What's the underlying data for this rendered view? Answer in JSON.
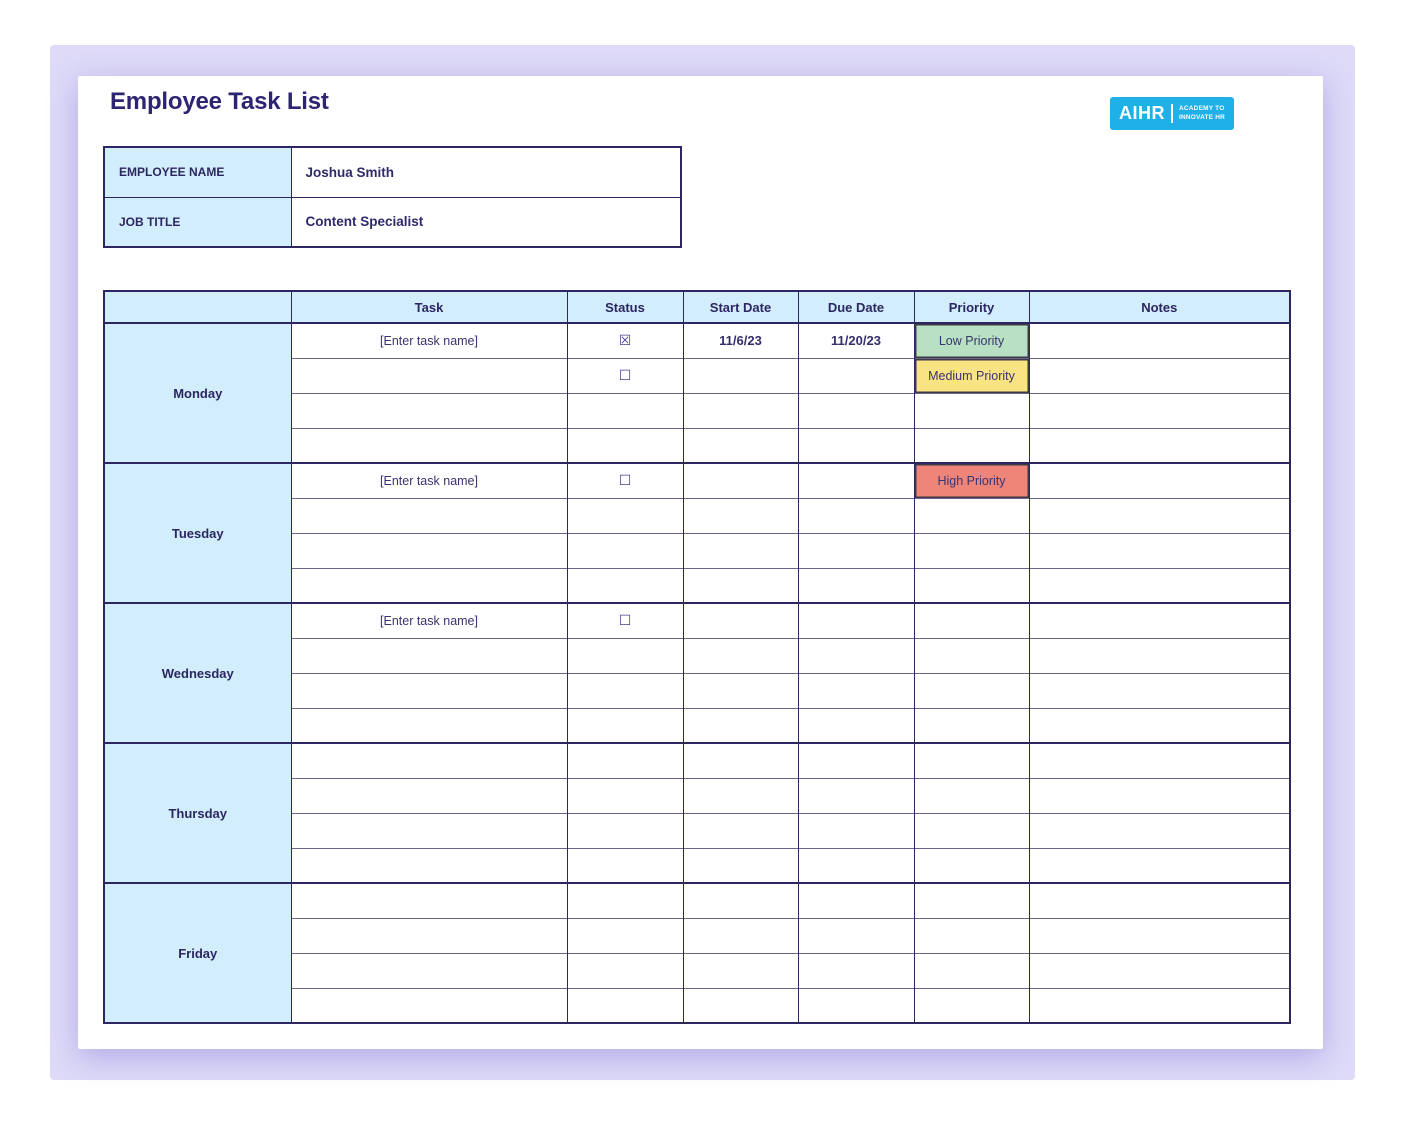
{
  "page": {
    "title": "Employee Task List"
  },
  "logo": {
    "text": "AIHR",
    "tagline_line1": "ACADEMY TO",
    "tagline_line2": "INNOVATE HR",
    "background_color": "#1fb0e8"
  },
  "employee_info": {
    "rows": [
      {
        "label": "EMPLOYEE NAME",
        "value": "Joshua Smith"
      },
      {
        "label": "JOB TITLE",
        "value": "Content Specialist"
      }
    ]
  },
  "symbols": {
    "checked": "☒",
    "unchecked": "☐"
  },
  "colors": {
    "accent_navy": "#2c2661",
    "header_blue": "#d2eefc",
    "priority_low_green": "#b7e1c2",
    "priority_medium_yellow": "#f9e383",
    "priority_high_red": "#ee8578",
    "page_background_lavender": "#dedaf8"
  },
  "task_table": {
    "headers": [
      {
        "key": "day",
        "label": ""
      },
      {
        "key": "task",
        "label": "Task"
      },
      {
        "key": "status",
        "label": "Status"
      },
      {
        "key": "start_date",
        "label": "Start Date"
      },
      {
        "key": "due_date",
        "label": "Due Date"
      },
      {
        "key": "priority",
        "label": "Priority"
      },
      {
        "key": "notes",
        "label": "Notes"
      }
    ],
    "days": [
      {
        "name": "Monday",
        "rows": [
          {
            "task": "[Enter task name]",
            "status": "checked",
            "start_date": "11/6/23",
            "due_date": "11/20/23",
            "priority": "Low Priority",
            "priority_level": "low",
            "notes": ""
          },
          {
            "task": "",
            "status": "unchecked",
            "start_date": "",
            "due_date": "",
            "priority": "Medium Priority",
            "priority_level": "medium",
            "notes": ""
          },
          {
            "task": "",
            "status": "",
            "start_date": "",
            "due_date": "",
            "priority": "",
            "priority_level": "",
            "notes": ""
          },
          {
            "task": "",
            "status": "",
            "start_date": "",
            "due_date": "",
            "priority": "",
            "priority_level": "",
            "notes": ""
          }
        ]
      },
      {
        "name": "Tuesday",
        "rows": [
          {
            "task": "[Enter task name]",
            "status": "unchecked",
            "start_date": "",
            "due_date": "",
            "priority": "High Priority",
            "priority_level": "high",
            "notes": ""
          },
          {
            "task": "",
            "status": "",
            "start_date": "",
            "due_date": "",
            "priority": "",
            "priority_level": "",
            "notes": ""
          },
          {
            "task": "",
            "status": "",
            "start_date": "",
            "due_date": "",
            "priority": "",
            "priority_level": "",
            "notes": ""
          },
          {
            "task": "",
            "status": "",
            "start_date": "",
            "due_date": "",
            "priority": "",
            "priority_level": "",
            "notes": ""
          }
        ]
      },
      {
        "name": "Wednesday",
        "rows": [
          {
            "task": "[Enter task name]",
            "status": "unchecked",
            "start_date": "",
            "due_date": "",
            "priority": "",
            "priority_level": "",
            "notes": ""
          },
          {
            "task": "",
            "status": "",
            "start_date": "",
            "due_date": "",
            "priority": "",
            "priority_level": "",
            "notes": ""
          },
          {
            "task": "",
            "status": "",
            "start_date": "",
            "due_date": "",
            "priority": "",
            "priority_level": "",
            "notes": ""
          },
          {
            "task": "",
            "status": "",
            "start_date": "",
            "due_date": "",
            "priority": "",
            "priority_level": "",
            "notes": ""
          }
        ]
      },
      {
        "name": "Thursday",
        "rows": [
          {
            "task": "",
            "status": "",
            "start_date": "",
            "due_date": "",
            "priority": "",
            "priority_level": "",
            "notes": ""
          },
          {
            "task": "",
            "status": "",
            "start_date": "",
            "due_date": "",
            "priority": "",
            "priority_level": "",
            "notes": ""
          },
          {
            "task": "",
            "status": "",
            "start_date": "",
            "due_date": "",
            "priority": "",
            "priority_level": "",
            "notes": ""
          },
          {
            "task": "",
            "status": "",
            "start_date": "",
            "due_date": "",
            "priority": "",
            "priority_level": "",
            "notes": ""
          }
        ]
      },
      {
        "name": "Friday",
        "rows": [
          {
            "task": "",
            "status": "",
            "start_date": "",
            "due_date": "",
            "priority": "",
            "priority_level": "",
            "notes": ""
          },
          {
            "task": "",
            "status": "",
            "start_date": "",
            "due_date": "",
            "priority": "",
            "priority_level": "",
            "notes": ""
          },
          {
            "task": "",
            "status": "",
            "start_date": "",
            "due_date": "",
            "priority": "",
            "priority_level": "",
            "notes": ""
          },
          {
            "task": "",
            "status": "",
            "start_date": "",
            "due_date": "",
            "priority": "",
            "priority_level": "",
            "notes": ""
          }
        ]
      }
    ]
  }
}
